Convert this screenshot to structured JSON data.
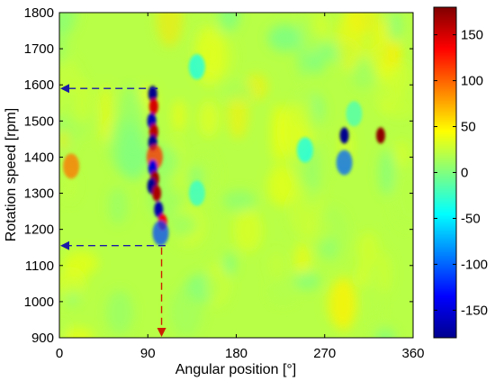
{
  "chart_data": {
    "type": "heatmap",
    "title": "",
    "xlabel": "Angular position [°]",
    "ylabel": "Rotation speed [rpm]",
    "xlim": [
      0,
      360
    ],
    "ylim": [
      900,
      1800
    ],
    "xticks": [
      0,
      90,
      180,
      270,
      360
    ],
    "yticks": [
      900,
      1000,
      1100,
      1200,
      1300,
      1400,
      1500,
      1600,
      1700,
      1800
    ],
    "colorbar": {
      "range": [
        -180,
        180
      ],
      "ticks": [
        150,
        100,
        50,
        0,
        -50,
        -100,
        -150
      ],
      "colormap": "jet"
    },
    "background_value": 20,
    "features": [
      {
        "angle": 95,
        "rpm": 1575,
        "value": -175
      },
      {
        "angle": 96,
        "rpm": 1540,
        "value": 150
      },
      {
        "angle": 94,
        "rpm": 1500,
        "value": -160
      },
      {
        "angle": 96,
        "rpm": 1470,
        "value": 160
      },
      {
        "angle": 95,
        "rpm": 1440,
        "value": -175
      },
      {
        "angle": 97,
        "rpm": 1400,
        "value": 120
      },
      {
        "angle": 95,
        "rpm": 1370,
        "value": -150
      },
      {
        "angle": 97,
        "rpm": 1340,
        "value": 170
      },
      {
        "angle": 94,
        "rpm": 1320,
        "value": -175
      },
      {
        "angle": 99,
        "rpm": 1300,
        "value": 165
      },
      {
        "angle": 101,
        "rpm": 1255,
        "value": -165
      },
      {
        "angle": 105,
        "rpm": 1220,
        "value": 140
      },
      {
        "angle": 103,
        "rpm": 1190,
        "value": -110
      },
      {
        "angle": 290,
        "rpm": 1460,
        "value": -175
      },
      {
        "angle": 327,
        "rpm": 1460,
        "value": 175
      },
      {
        "angle": 290,
        "rpm": 1385,
        "value": -100
      },
      {
        "angle": 12,
        "rpm": 1375,
        "value": 95
      },
      {
        "angle": 140,
        "rpm": 1650,
        "value": -40
      },
      {
        "angle": 140,
        "rpm": 1300,
        "value": -30
      },
      {
        "angle": 250,
        "rpm": 1420,
        "value": -40
      },
      {
        "angle": 300,
        "rpm": 1520,
        "value": -20
      }
    ],
    "annotations": [
      {
        "type": "arrow",
        "from": [
          100,
          1590
        ],
        "to": [
          0,
          1590
        ],
        "color": "#1a1aa6",
        "style": "dashed"
      },
      {
        "type": "arrow",
        "from": [
          108,
          1155
        ],
        "to": [
          0,
          1155
        ],
        "color": "#1a1aa6",
        "style": "dashed"
      },
      {
        "type": "arrow",
        "from": [
          104,
          1150
        ],
        "to": [
          104,
          900
        ],
        "color": "#cc2200",
        "style": "dashed"
      }
    ]
  }
}
